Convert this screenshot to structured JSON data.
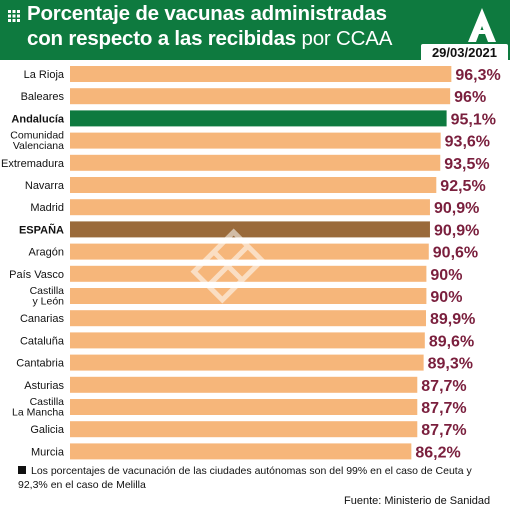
{
  "title_line1": "Porcentaje de vacunas administradas",
  "title_line2_bold": "con respecto a las recibidas",
  "title_line2_rest": " por CCAA",
  "date": "29/03/2021",
  "footnote": "Los porcentajes de vacunación de las ciudades autónomas son del 99% en el caso de Ceuta y 92,3% en el caso de Melilla",
  "source": "Fuente: Ministerio de Sanidad",
  "colors": {
    "header": "#0e7a3f",
    "bar_default": "#f6b67a",
    "bar_andalucia": "#0e7a3f",
    "bar_espana": "#9a6a3a",
    "value_text": "#7a1f3d"
  },
  "icons": [
    "grid-icon",
    "junta-andalucia-logo",
    "watermark-logo"
  ],
  "chart_data": {
    "type": "bar",
    "orientation": "horizontal",
    "xlim": [
      0,
      100
    ],
    "categories": [
      "La Rioja",
      "Baleares",
      "Andalucía",
      "Comunidad Valenciana",
      "Extremadura",
      "Navarra",
      "Madrid",
      "ESPAÑA",
      "Aragón",
      "País Vasco",
      "Castilla y León",
      "Canarias",
      "Cataluña",
      "Cantabria",
      "Asturias",
      "Castilla La Mancha",
      "Galicia",
      "Murcia"
    ],
    "category_lines": [
      [
        "La Rioja"
      ],
      [
        "Baleares"
      ],
      [
        "Andalucía"
      ],
      [
        "Comunidad",
        "Valenciana"
      ],
      [
        "Extremadura"
      ],
      [
        "Navarra"
      ],
      [
        "Madrid"
      ],
      [
        "ESPAÑA"
      ],
      [
        "Aragón"
      ],
      [
        "País Vasco"
      ],
      [
        "Castilla",
        "y León"
      ],
      [
        "Canarias"
      ],
      [
        "Cataluña"
      ],
      [
        "Cantabria"
      ],
      [
        "Asturias"
      ],
      [
        "Castilla",
        "La Mancha"
      ],
      [
        "Galicia"
      ],
      [
        "Murcia"
      ]
    ],
    "values": [
      96.3,
      96,
      95.1,
      93.6,
      93.5,
      92.5,
      90.9,
      90.9,
      90.6,
      90,
      90,
      89.9,
      89.6,
      89.3,
      87.7,
      87.7,
      87.7,
      86.2
    ],
    "value_labels": [
      "96,3%",
      "96%",
      "95,1%",
      "93,6%",
      "93,5%",
      "92,5%",
      "90,9%",
      "90,9%",
      "90,6%",
      "90%",
      "90%",
      "89,9%",
      "89,6%",
      "89,3%",
      "87,7%",
      "87,7%",
      "87,7%",
      "86,2%"
    ],
    "highlight": {
      "Andalucía": "bar_andalucia",
      "ESPAÑA": "bar_espana"
    },
    "bold_categories": [
      "Andalucía",
      "ESPAÑA"
    ],
    "grid": false,
    "legend": "none"
  }
}
